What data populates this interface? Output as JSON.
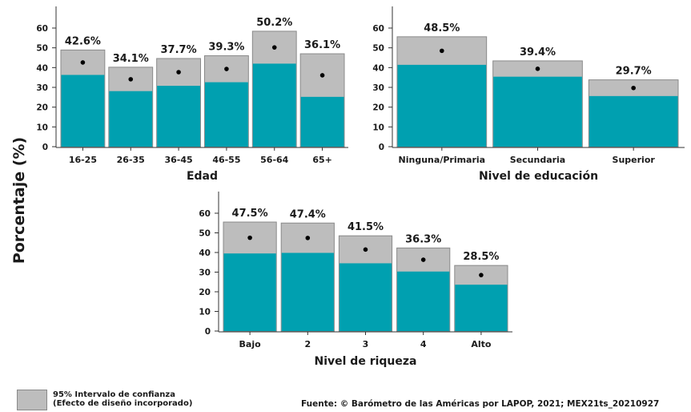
{
  "y_axis_label": "Porcentaje (%)",
  "legend": {
    "label": "95% Intervalo de confianza\n(Efecto de diseño incorporado)",
    "color": "#bdbdbd"
  },
  "source": "Fuente: © Barómetro de las Américas por LAPOP, 2021; MEX21ts_20210927",
  "colors": {
    "bar": "#00a0b0",
    "ci": "#bdbdbd",
    "ci_border": "#8a8a8a",
    "point": "#000000"
  },
  "chart_data": [
    {
      "type": "bar",
      "xlabel": "Edad",
      "ylim": [
        0,
        60
      ],
      "yticks": [
        0,
        10,
        20,
        30,
        40,
        50,
        60
      ],
      "categories": [
        "16-25",
        "26-35",
        "36-45",
        "46-55",
        "56-64",
        "65+"
      ],
      "values": [
        42.6,
        34.1,
        37.7,
        39.3,
        50.2,
        36.1
      ],
      "labels": [
        "42.6%",
        "34.1%",
        "37.7%",
        "39.3%",
        "50.2%",
        "36.1%"
      ],
      "ci_lower": [
        36.3,
        28.1,
        30.8,
        32.6,
        42.0,
        25.2
      ],
      "ci_upper": [
        48.9,
        40.2,
        44.6,
        46.0,
        58.4,
        47.0
      ]
    },
    {
      "type": "bar",
      "xlabel": "Nivel de educación",
      "ylim": [
        0,
        60
      ],
      "yticks": [
        0,
        10,
        20,
        30,
        40,
        50,
        60
      ],
      "categories": [
        "Ninguna/Primaria",
        "Secundaria",
        "Superior"
      ],
      "values": [
        48.5,
        39.4,
        29.7
      ],
      "labels": [
        "48.5%",
        "39.4%",
        "29.7%"
      ],
      "ci_lower": [
        41.4,
        35.4,
        25.6
      ],
      "ci_upper": [
        55.6,
        43.4,
        33.8
      ]
    },
    {
      "type": "bar",
      "xlabel": "Nivel de riqueza",
      "ylim": [
        0,
        60
      ],
      "yticks": [
        0,
        10,
        20,
        30,
        40,
        50,
        60
      ],
      "categories": [
        "Bajo",
        "2",
        "3",
        "4",
        "Alto"
      ],
      "values": [
        47.5,
        47.4,
        41.5,
        36.3,
        28.5
      ],
      "labels": [
        "47.5%",
        "47.4%",
        "41.5%",
        "36.3%",
        "28.5%"
      ],
      "ci_lower": [
        39.5,
        39.8,
        34.5,
        30.3,
        23.6
      ],
      "ci_upper": [
        55.5,
        55.0,
        48.5,
        42.3,
        33.4
      ]
    }
  ]
}
